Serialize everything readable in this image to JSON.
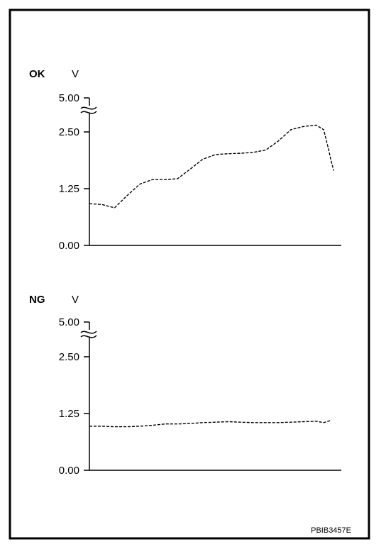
{
  "figure_code": "PBIB3457E",
  "chart_data": [
    {
      "type": "line",
      "status_label": "OK",
      "ylabel": "V",
      "yticks": [
        "0.00",
        "1.25",
        "2.50",
        "5.00"
      ],
      "ylim": [
        0,
        5.0
      ],
      "axis_break": "between 2.50 and 5.00",
      "grid": false,
      "line_style": "dashed",
      "series": [
        {
          "x": [
            0,
            5,
            10,
            15,
            20,
            25,
            30,
            35,
            40,
            45,
            50,
            55,
            60,
            65,
            70,
            75,
            80,
            85,
            90,
            93,
            95,
            96,
            97
          ],
          "y": [
            0.92,
            0.9,
            0.83,
            1.1,
            1.35,
            1.45,
            1.45,
            1.47,
            1.68,
            1.9,
            2.0,
            2.02,
            2.03,
            2.05,
            2.1,
            2.3,
            2.55,
            2.62,
            2.65,
            2.55,
            2.1,
            1.85,
            1.65
          ]
        }
      ]
    },
    {
      "type": "line",
      "status_label": "NG",
      "ylabel": "V",
      "yticks": [
        "0.00",
        "1.25",
        "2.50",
        "5.00"
      ],
      "ylim": [
        0,
        5.0
      ],
      "axis_break": "between 2.50 and 5.00",
      "grid": false,
      "line_style": "dashed",
      "series": [
        {
          "x": [
            0,
            5,
            10,
            15,
            20,
            25,
            30,
            35,
            40,
            45,
            50,
            55,
            60,
            65,
            70,
            75,
            80,
            85,
            90,
            93,
            96
          ],
          "y": [
            0.97,
            0.97,
            0.96,
            0.96,
            0.97,
            0.99,
            1.02,
            1.02,
            1.03,
            1.05,
            1.06,
            1.07,
            1.06,
            1.05,
            1.05,
            1.05,
            1.06,
            1.07,
            1.08,
            1.05,
            1.1
          ]
        }
      ]
    }
  ]
}
